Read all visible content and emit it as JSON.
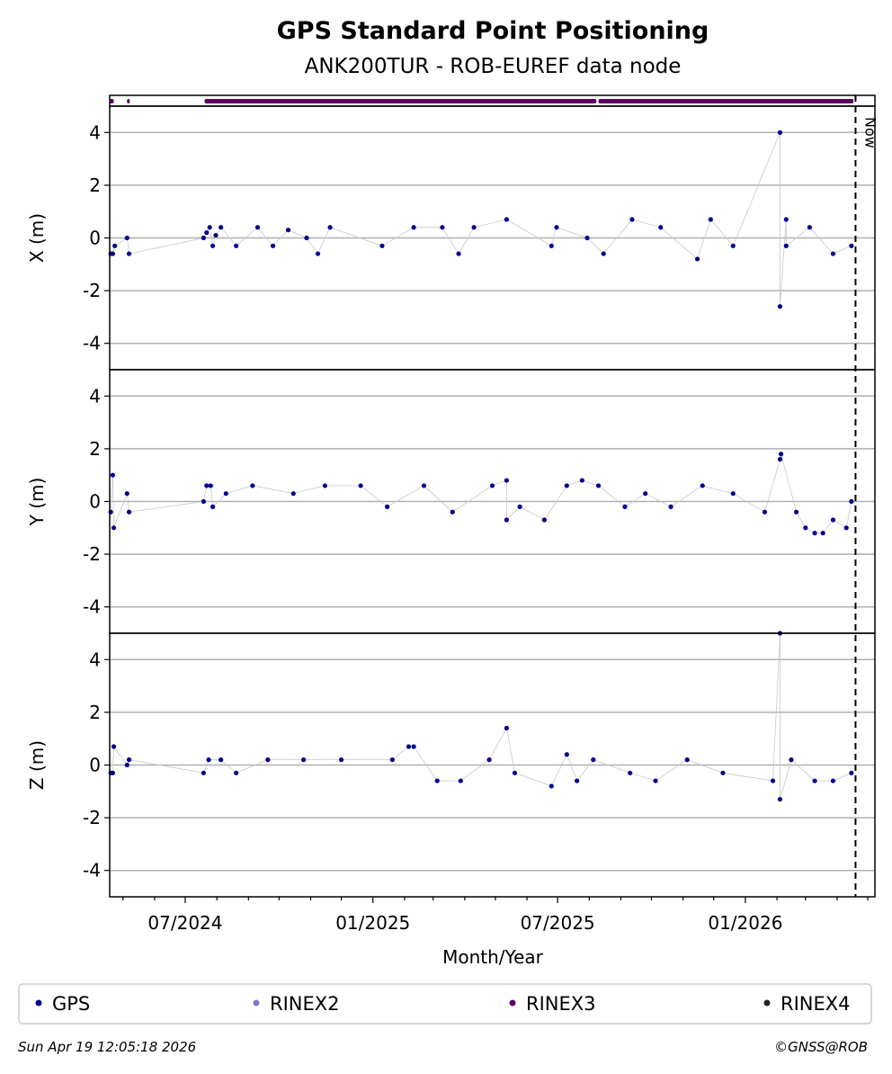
{
  "chart_data": {
    "type": "scatter",
    "title": "GPS Standard Point Positioning",
    "subtitle": "ANK200TUR - ROB-EUREF data node",
    "xlabel": "Month/Year",
    "x_ticks": [
      "07/2024",
      "01/2025",
      "07/2025",
      "01/2026"
    ],
    "xlim": [
      "2024-04-18",
      "2026-05-08"
    ],
    "now_marker": {
      "label": "Now",
      "date": "2026-04-19"
    },
    "legend_placement": "bottom",
    "grid": true,
    "colors": {
      "GPS": "#00008b",
      "RINEX2": "#7b7bc0",
      "RINEX3": "#5c0060",
      "RINEX4": "#222222",
      "grid": "#b0b0b0",
      "connector": "#c8c8c8"
    },
    "legend": [
      "GPS",
      "RINEX2",
      "RINEX3",
      "RINEX4"
    ],
    "rinex_availability": {
      "series": "RINEX3",
      "segments": [
        [
          "2024-04-18",
          "2024-04-22"
        ],
        [
          "2024-05-05",
          "2024-05-07"
        ],
        [
          "2024-07-20",
          "2025-08-08"
        ],
        [
          "2025-08-10",
          "2026-04-17"
        ]
      ]
    },
    "panels": [
      {
        "ylabel": "X (m)",
        "ylim": [
          -5,
          5
        ],
        "y_ticks": [
          4,
          2,
          0,
          -2,
          -4
        ],
        "series": [
          {
            "name": "GPS",
            "points": [
              [
                "2024-04-19",
                -0.6
              ],
              [
                "2024-04-21",
                -0.6
              ],
              [
                "2024-04-23",
                -0.3
              ],
              [
                "2024-05-05",
                0.0
              ],
              [
                "2024-05-07",
                -0.6
              ],
              [
                "2024-07-19",
                0.0
              ],
              [
                "2024-07-22",
                0.2
              ],
              [
                "2024-07-25",
                0.4
              ],
              [
                "2024-07-28",
                -0.3
              ],
              [
                "2024-07-31",
                0.1
              ],
              [
                "2024-08-05",
                0.4
              ],
              [
                "2024-08-20",
                -0.3
              ],
              [
                "2024-09-10",
                0.4
              ],
              [
                "2024-09-25",
                -0.3
              ],
              [
                "2024-10-10",
                0.3
              ],
              [
                "2024-10-28",
                0.0
              ],
              [
                "2024-11-08",
                -0.6
              ],
              [
                "2024-11-20",
                0.4
              ],
              [
                "2025-01-10",
                -0.3
              ],
              [
                "2025-02-10",
                0.4
              ],
              [
                "2025-03-10",
                0.4
              ],
              [
                "2025-03-26",
                -0.6
              ],
              [
                "2025-04-10",
                0.4
              ],
              [
                "2025-05-12",
                0.7
              ],
              [
                "2025-06-25",
                -0.3
              ],
              [
                "2025-06-30",
                0.4
              ],
              [
                "2025-07-30",
                0.0
              ],
              [
                "2025-08-15",
                -0.6
              ],
              [
                "2025-09-12",
                0.7
              ],
              [
                "2025-10-10",
                0.4
              ],
              [
                "2025-11-15",
                -0.8
              ],
              [
                "2025-11-28",
                0.7
              ],
              [
                "2025-12-20",
                -0.3
              ],
              [
                "2026-02-04",
                4.0
              ],
              [
                "2026-02-04",
                -2.6
              ],
              [
                "2026-02-10",
                0.7
              ],
              [
                "2026-02-10",
                -0.3
              ],
              [
                "2026-03-05",
                0.4
              ],
              [
                "2026-03-28",
                -0.6
              ],
              [
                "2026-04-15",
                -0.3
              ]
            ]
          }
        ]
      },
      {
        "ylabel": "Y (m)",
        "ylim": [
          -5,
          5
        ],
        "y_ticks": [
          4,
          2,
          0,
          -2,
          -4
        ],
        "series": [
          {
            "name": "GPS",
            "points": [
              [
                "2024-04-19",
                -0.4
              ],
              [
                "2024-04-21",
                1.0
              ],
              [
                "2024-04-22",
                -1.0
              ],
              [
                "2024-05-05",
                0.3
              ],
              [
                "2024-05-07",
                -0.4
              ],
              [
                "2024-07-19",
                0.0
              ],
              [
                "2024-07-22",
                0.6
              ],
              [
                "2024-07-26",
                0.6
              ],
              [
                "2024-07-28",
                -0.2
              ],
              [
                "2024-08-10",
                0.3
              ],
              [
                "2024-09-05",
                0.6
              ],
              [
                "2024-10-15",
                0.3
              ],
              [
                "2024-11-15",
                0.6
              ],
              [
                "2024-12-20",
                0.6
              ],
              [
                "2025-01-15",
                -0.2
              ],
              [
                "2025-02-20",
                0.6
              ],
              [
                "2025-03-20",
                -0.4
              ],
              [
                "2025-04-28",
                0.6
              ],
              [
                "2025-05-12",
                0.8
              ],
              [
                "2025-05-12",
                -0.7
              ],
              [
                "2025-05-25",
                -0.2
              ],
              [
                "2025-06-18",
                -0.7
              ],
              [
                "2025-07-10",
                0.6
              ],
              [
                "2025-07-25",
                0.8
              ],
              [
                "2025-08-10",
                0.6
              ],
              [
                "2025-09-05",
                -0.2
              ],
              [
                "2025-09-25",
                0.3
              ],
              [
                "2025-10-20",
                -0.2
              ],
              [
                "2025-11-20",
                0.6
              ],
              [
                "2025-12-20",
                0.3
              ],
              [
                "2026-01-20",
                -0.4
              ],
              [
                "2026-02-04",
                1.6
              ],
              [
                "2026-02-05",
                1.8
              ],
              [
                "2026-02-20",
                -0.4
              ],
              [
                "2026-03-01",
                -1.0
              ],
              [
                "2026-03-10",
                -1.2
              ],
              [
                "2026-03-18",
                -1.2
              ],
              [
                "2026-03-28",
                -0.7
              ],
              [
                "2026-04-10",
                -1.0
              ],
              [
                "2026-04-15",
                0.0
              ]
            ]
          }
        ]
      },
      {
        "ylabel": "Z (m)",
        "ylim": [
          -5,
          5
        ],
        "y_ticks": [
          4,
          2,
          0,
          -2,
          -4
        ],
        "series": [
          {
            "name": "GPS",
            "points": [
              [
                "2024-04-19",
                -0.3
              ],
              [
                "2024-04-21",
                -0.3
              ],
              [
                "2024-04-22",
                0.7
              ],
              [
                "2024-05-05",
                0.0
              ],
              [
                "2024-05-07",
                0.2
              ],
              [
                "2024-07-19",
                -0.3
              ],
              [
                "2024-07-24",
                0.2
              ],
              [
                "2024-08-05",
                0.2
              ],
              [
                "2024-08-20",
                -0.3
              ],
              [
                "2024-09-20",
                0.2
              ],
              [
                "2024-10-25",
                0.2
              ],
              [
                "2024-12-01",
                0.2
              ],
              [
                "2025-01-20",
                0.2
              ],
              [
                "2025-02-05",
                0.7
              ],
              [
                "2025-02-10",
                0.7
              ],
              [
                "2025-03-05",
                -0.6
              ],
              [
                "2025-03-28",
                -0.6
              ],
              [
                "2025-04-25",
                0.2
              ],
              [
                "2025-05-12",
                1.4
              ],
              [
                "2025-05-20",
                -0.3
              ],
              [
                "2025-06-25",
                -0.8
              ],
              [
                "2025-07-10",
                0.4
              ],
              [
                "2025-07-20",
                -0.6
              ],
              [
                "2025-08-05",
                0.2
              ],
              [
                "2025-09-10",
                -0.3
              ],
              [
                "2025-10-05",
                -0.6
              ],
              [
                "2025-11-05",
                0.2
              ],
              [
                "2025-12-10",
                -0.3
              ],
              [
                "2026-01-28",
                -0.6
              ],
              [
                "2026-02-04",
                5.0
              ],
              [
                "2026-02-04",
                -1.3
              ],
              [
                "2026-02-15",
                0.2
              ],
              [
                "2026-03-10",
                -0.6
              ],
              [
                "2026-03-28",
                -0.6
              ],
              [
                "2026-04-15",
                -0.3
              ]
            ]
          }
        ]
      }
    ]
  },
  "footer": {
    "timestamp": "Sun Apr 19 12:05:18 2026",
    "credit": "©GNSS@ROB"
  }
}
